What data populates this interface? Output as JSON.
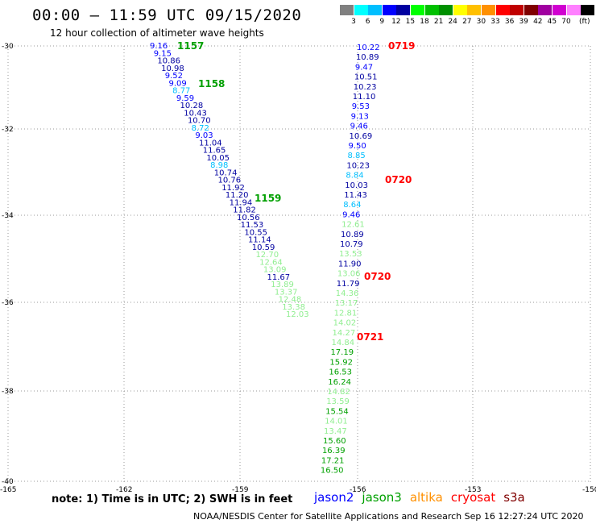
{
  "title": "00:00 – 11:59 UTC 09/15/2020",
  "subtitle": "12 hour collection of altimeter wave heights",
  "scale": {
    "colors": [
      "#808080",
      "#00ffff",
      "#00bfff",
      "#0000ff",
      "#0000a0",
      "#00ff00",
      "#00c000",
      "#009000",
      "#ffff00",
      "#ffc000",
      "#ff9000",
      "#ff0000",
      "#c00000",
      "#800000",
      "#a000a0",
      "#d000d0",
      "#ff80ff",
      "#000000"
    ],
    "labels": [
      "3",
      "6",
      "9",
      "12",
      "15",
      "18",
      "21",
      "24",
      "27",
      "30",
      "33",
      "36",
      "39",
      "42",
      "45",
      "70"
    ],
    "unit": "(ft)"
  },
  "axes": {
    "lat_labels": [
      "-30",
      "-32",
      "-34",
      "-36",
      "-38",
      "-40"
    ],
    "lon_labels": [
      "-165",
      "-162",
      "-159",
      "-156",
      "-153",
      "-150"
    ]
  },
  "right_track_values": [
    {
      "v": "10.22",
      "c": "#0000ff"
    },
    {
      "v": "10.89",
      "c": "#0000a0"
    },
    {
      "v": "9.47",
      "c": "#0000ff"
    },
    {
      "v": "10.51",
      "c": "#0000a0"
    },
    {
      "v": "10.23",
      "c": "#0000a0"
    },
    {
      "v": "11.10",
      "c": "#0000a0"
    },
    {
      "v": "9.53",
      "c": "#0000ff"
    },
    {
      "v": "9.13",
      "c": "#0000ff"
    },
    {
      "v": "9.46",
      "c": "#0000ff"
    },
    {
      "v": "10.69",
      "c": "#0000a0"
    },
    {
      "v": "9.50",
      "c": "#0000ff"
    },
    {
      "v": "8.85",
      "c": "#00bfff"
    },
    {
      "v": "10.23",
      "c": "#0000a0"
    },
    {
      "v": "8.84",
      "c": "#00bfff"
    },
    {
      "v": "10.03",
      "c": "#0000a0"
    },
    {
      "v": "11.43",
      "c": "#0000a0"
    },
    {
      "v": "8.64",
      "c": "#00bfff"
    },
    {
      "v": "9.46",
      "c": "#0000ff"
    },
    {
      "v": "12.61",
      "c": "#90ee90"
    },
    {
      "v": "10.89",
      "c": "#0000a0"
    },
    {
      "v": "10.79",
      "c": "#0000a0"
    },
    {
      "v": "13.53",
      "c": "#90ee90"
    },
    {
      "v": "11.90",
      "c": "#0000a0"
    },
    {
      "v": "13.06",
      "c": "#90ee90"
    },
    {
      "v": "11.79",
      "c": "#0000a0"
    },
    {
      "v": "14.36",
      "c": "#90ee90"
    },
    {
      "v": "13.17",
      "c": "#90ee90"
    },
    {
      "v": "12.81",
      "c": "#90ee90"
    },
    {
      "v": "14.02",
      "c": "#90ee90"
    },
    {
      "v": "14.27",
      "c": "#90ee90"
    },
    {
      "v": "14.84",
      "c": "#90ee90"
    },
    {
      "v": "17.19",
      "c": "#00a000"
    },
    {
      "v": "15.92",
      "c": "#00a000"
    },
    {
      "v": "16.53",
      "c": "#00a000"
    },
    {
      "v": "16.24",
      "c": "#00a000"
    },
    {
      "v": "14.82",
      "c": "#90ee90"
    },
    {
      "v": "13.59",
      "c": "#90ee90"
    },
    {
      "v": "15.54",
      "c": "#00a000"
    },
    {
      "v": "14.01",
      "c": "#90ee90"
    },
    {
      "v": "13.47",
      "c": "#90ee90"
    },
    {
      "v": "15.60",
      "c": "#00a000"
    },
    {
      "v": "16.39",
      "c": "#00a000"
    },
    {
      "v": "17.21",
      "c": "#00a000"
    },
    {
      "v": "16.50",
      "c": "#00a000"
    }
  ],
  "left_track_values": [
    {
      "v": "9.16",
      "c": "#0000ff"
    },
    {
      "v": "9.15",
      "c": "#0000ff"
    },
    {
      "v": "10.86",
      "c": "#0000a0"
    },
    {
      "v": "10.98",
      "c": "#0000a0"
    },
    {
      "v": "9.52",
      "c": "#0000ff"
    },
    {
      "v": "9.09",
      "c": "#0000ff"
    },
    {
      "v": "8.77",
      "c": "#00bfff"
    },
    {
      "v": "9.59",
      "c": "#0000ff"
    },
    {
      "v": "10.28",
      "c": "#0000a0"
    },
    {
      "v": "10.43",
      "c": "#0000a0"
    },
    {
      "v": "10.70",
      "c": "#0000a0"
    },
    {
      "v": "8.72",
      "c": "#00bfff"
    },
    {
      "v": "9.03",
      "c": "#0000ff"
    },
    {
      "v": "11.04",
      "c": "#0000a0"
    },
    {
      "v": "11.65",
      "c": "#0000a0"
    },
    {
      "v": "10.05",
      "c": "#0000a0"
    },
    {
      "v": "8.98",
      "c": "#00bfff"
    },
    {
      "v": "10.74",
      "c": "#0000a0"
    },
    {
      "v": "10.76",
      "c": "#0000a0"
    },
    {
      "v": "11.92",
      "c": "#0000a0"
    },
    {
      "v": "11.20",
      "c": "#0000a0"
    },
    {
      "v": "11.94",
      "c": "#0000a0"
    },
    {
      "v": "11.82",
      "c": "#0000a0"
    },
    {
      "v": "10.56",
      "c": "#0000a0"
    },
    {
      "v": "11.53",
      "c": "#0000a0"
    },
    {
      "v": "10.55",
      "c": "#0000a0"
    },
    {
      "v": "11.14",
      "c": "#0000a0"
    },
    {
      "v": "10.59",
      "c": "#0000a0"
    },
    {
      "v": "12.70",
      "c": "#90ee90"
    },
    {
      "v": "12.64",
      "c": "#90ee90"
    },
    {
      "v": "13.09",
      "c": "#90ee90"
    },
    {
      "v": "11.67",
      "c": "#0000a0"
    },
    {
      "v": "13.89",
      "c": "#90ee90"
    },
    {
      "v": "13.37",
      "c": "#90ee90"
    },
    {
      "v": "12.48",
      "c": "#90ee90"
    },
    {
      "v": "13.38",
      "c": "#90ee90"
    },
    {
      "v": "12.03",
      "c": "#90ee90"
    }
  ],
  "time_labels": [
    {
      "text": "0719",
      "color": "#ff0000"
    },
    {
      "text": "0720",
      "color": "#ff0000"
    },
    {
      "text": "0720",
      "color": "#ff0000"
    },
    {
      "text": "0721",
      "color": "#ff0000"
    },
    {
      "text": "1157",
      "color": "#00a000"
    },
    {
      "text": "1158",
      "color": "#00a000"
    },
    {
      "text": "1159",
      "color": "#00a000"
    }
  ],
  "note": "note: 1) Time is in UTC; 2) SWH is in feet",
  "legend": [
    {
      "name": "jason2",
      "color": "#0000ff"
    },
    {
      "name": "jason3",
      "color": "#00a000"
    },
    {
      "name": "altika",
      "color": "#ff9000"
    },
    {
      "name": "cryosat",
      "color": "#ff0000"
    },
    {
      "name": "s3a",
      "color": "#800000"
    }
  ],
  "credit": "NOAA/NESDIS Center for Satellite Applications and Research   Sep 16 12:27:24 UTC 2020"
}
